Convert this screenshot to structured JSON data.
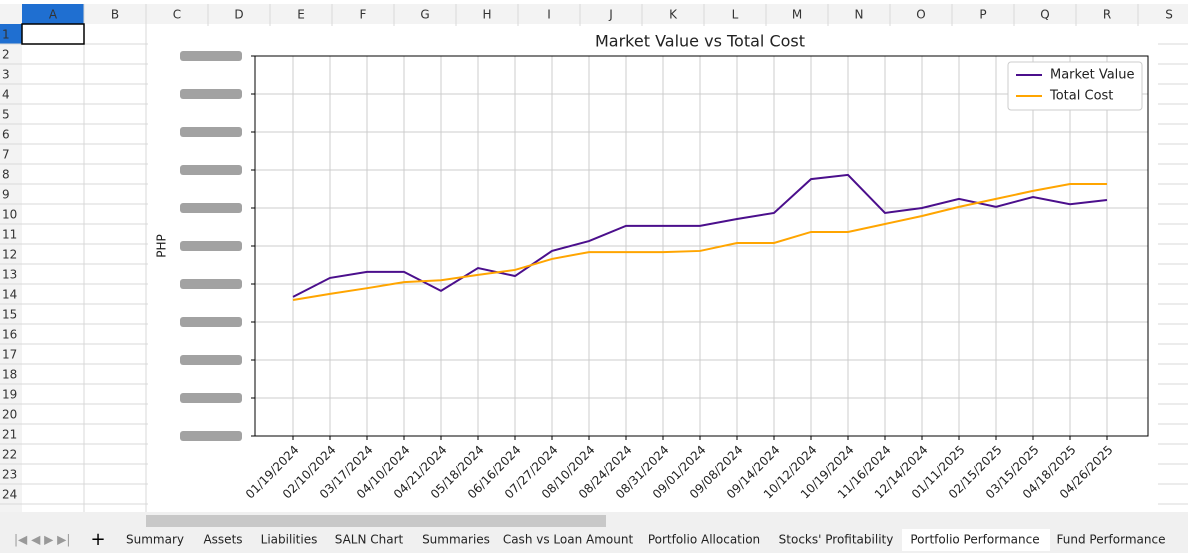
{
  "spreadsheet": {
    "columns": [
      "A",
      "B",
      "C",
      "D",
      "E",
      "F",
      "G",
      "H",
      "I",
      "J",
      "K",
      "L",
      "M",
      "N",
      "O",
      "P",
      "Q",
      "R",
      "S"
    ],
    "rows": [
      1,
      2,
      3,
      4,
      5,
      6,
      7,
      8,
      9,
      10,
      11,
      12,
      13,
      14,
      15,
      16,
      17,
      18,
      19,
      20,
      21,
      22,
      23,
      24
    ],
    "tabs": [
      "Summary",
      "Assets",
      "Liabilities",
      "SALN Chart",
      "Summaries",
      "Cash vs Loan Amount",
      "Portfolio Allocation",
      "Stocks' Profitability",
      "Portfolio Performance",
      "Fund Performance"
    ],
    "active_tab": 8
  },
  "chart_data": {
    "type": "line",
    "title": "Market Value vs Total Cost",
    "ylabel": "PHP",
    "x": [
      "01/19/2024",
      "02/10/2024",
      "03/17/2024",
      "04/10/2024",
      "04/21/2024",
      "05/18/2024",
      "06/16/2024",
      "07/27/2024",
      "08/10/2024",
      "08/24/2024",
      "08/31/2024",
      "09/01/2024",
      "09/08/2024",
      "09/14/2024",
      "10/12/2024",
      "10/19/2024",
      "11/16/2024",
      "12/14/2024",
      "01/11/2025",
      "02/15/2025",
      "03/15/2025",
      "04/18/2025",
      "04/26/2025"
    ],
    "series": [
      {
        "name": "Market Value",
        "color": "#4b0f8c",
        "values": [
          3.66,
          4.16,
          4.32,
          4.32,
          3.82,
          4.42,
          4.21,
          4.87,
          5.13,
          5.53,
          5.53,
          5.53,
          5.71,
          5.87,
          6.76,
          6.87,
          5.87,
          6.0,
          6.24,
          6.03,
          6.29,
          6.1,
          6.21
        ]
      },
      {
        "name": "Total Cost",
        "color": "#ffa500",
        "values": [
          3.58,
          3.74,
          3.89,
          4.05,
          4.1,
          4.24,
          4.37,
          4.66,
          4.84,
          4.84,
          4.84,
          4.87,
          5.08,
          5.08,
          5.37,
          5.37,
          5.58,
          5.79,
          6.03,
          6.24,
          6.45,
          6.63,
          6.63
        ]
      }
    ],
    "ylim": [
      0,
      10
    ],
    "yticks": [
      0,
      1,
      2,
      3,
      4,
      5,
      6,
      7,
      8,
      9,
      10
    ],
    "grid": true,
    "legend": "upper right"
  }
}
